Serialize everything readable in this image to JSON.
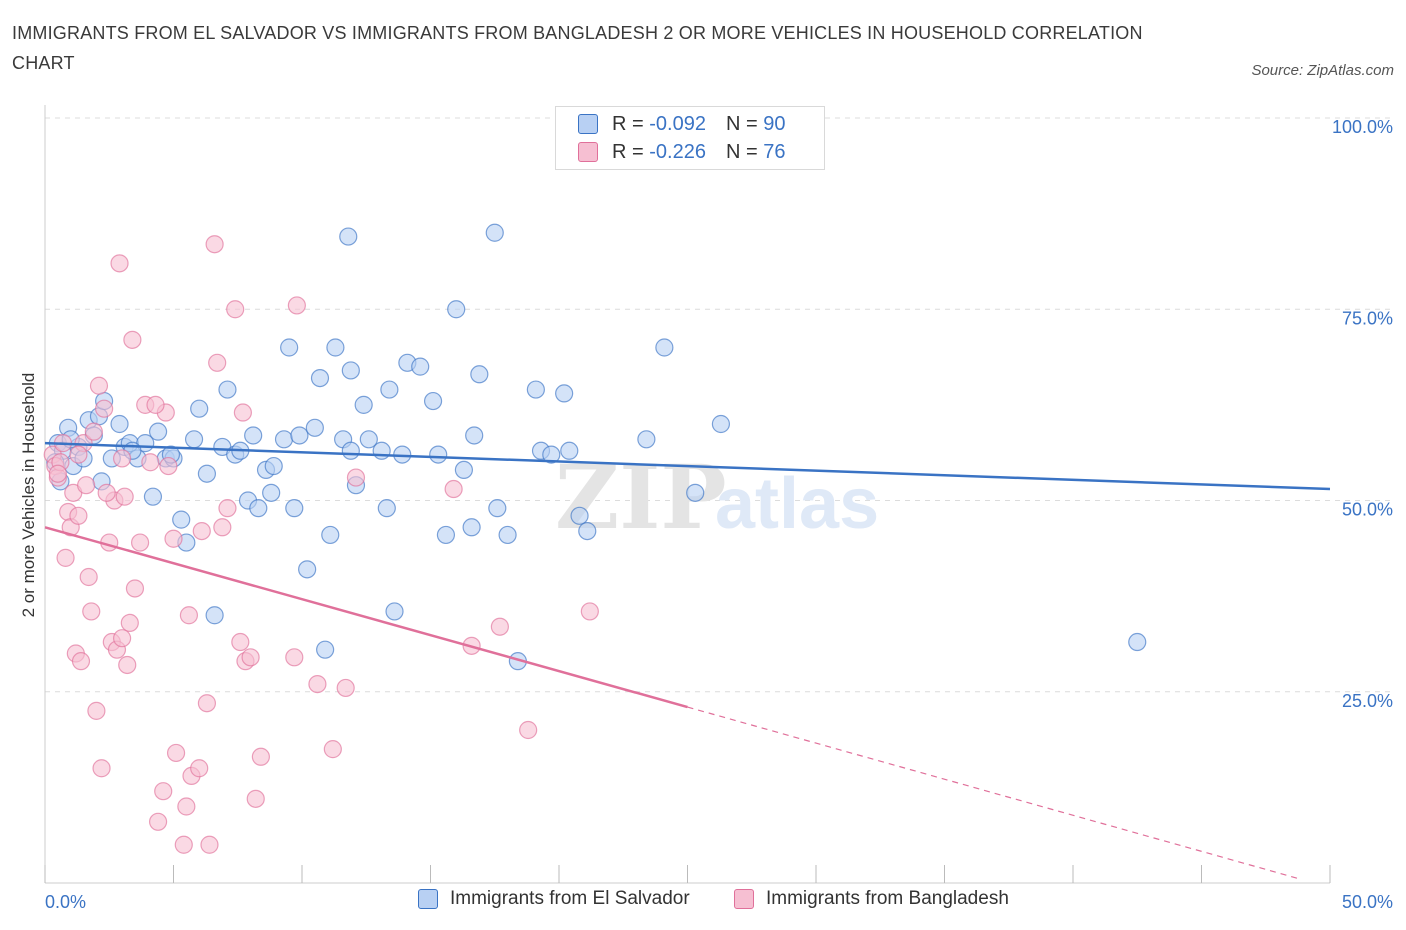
{
  "title": "IMMIGRANTS FROM EL SALVADOR VS IMMIGRANTS FROM BANGLADESH 2 OR MORE VEHICLES IN HOUSEHOLD CORRELATION CHART",
  "source": "Source: ZipAtlas.com",
  "watermark": {
    "zip": "ZIP",
    "atlas": "atlas"
  },
  "colors": {
    "blue": "#3a73c4",
    "blue_fill": "#b8d0f3",
    "pink": "#e0709a",
    "pink_fill": "#f6bfd2"
  },
  "legend": {
    "series1": {
      "r_label": "R =",
      "r_value": "-0.092",
      "n_label": "N =",
      "n_value": "90"
    },
    "series2": {
      "r_label": "R =",
      "r_value": "-0.226",
      "n_label": "N =",
      "n_value": "76"
    }
  },
  "bottom_legend": [
    "Immigrants from El Salvador",
    "Immigrants from Bangladesh"
  ],
  "chart_data": {
    "type": "scatter",
    "ylabel": "2 or more Vehicles in Household",
    "xlim": [
      0,
      50
    ],
    "ylim": [
      0,
      100
    ],
    "x_tick_labels": [
      "0.0%",
      "50.0%"
    ],
    "y_tick_labels": [
      "25.0%",
      "50.0%",
      "75.0%",
      "100.0%"
    ],
    "y_ticks": [
      25,
      50,
      75,
      100
    ],
    "grid": true,
    "series": [
      {
        "name": "Immigrants from El Salvador",
        "color": "#3a73c4",
        "trend": {
          "x": [
            0,
            50
          ],
          "y": [
            57.5,
            51.5
          ],
          "dashed_from": null
        },
        "points": [
          [
            0.5,
            57.5
          ],
          [
            0.7,
            56.5
          ],
          [
            0.9,
            59.5
          ],
          [
            1.1,
            54.5
          ],
          [
            1.3,
            57
          ],
          [
            1.5,
            55.5
          ],
          [
            1.7,
            60.5
          ],
          [
            1.9,
            58.5
          ],
          [
            2.1,
            61
          ],
          [
            2.3,
            63
          ],
          [
            2.6,
            55.5
          ],
          [
            2.9,
            60
          ],
          [
            3.1,
            57
          ],
          [
            3.3,
            57.5
          ],
          [
            3.6,
            55.5
          ],
          [
            3.9,
            57.5
          ],
          [
            4.2,
            50.5
          ],
          [
            4.4,
            59
          ],
          [
            4.7,
            55.5
          ],
          [
            5.0,
            55.5
          ],
          [
            5.3,
            47.5
          ],
          [
            5.5,
            44.5
          ],
          [
            5.8,
            58
          ],
          [
            6.0,
            62
          ],
          [
            6.3,
            53.5
          ],
          [
            6.6,
            35
          ],
          [
            6.9,
            57
          ],
          [
            7.1,
            64.5
          ],
          [
            7.4,
            56
          ],
          [
            7.6,
            56.5
          ],
          [
            7.9,
            50
          ],
          [
            8.1,
            58.5
          ],
          [
            8.3,
            49
          ],
          [
            8.6,
            54
          ],
          [
            8.8,
            51
          ],
          [
            8.9,
            54.5
          ],
          [
            9.3,
            58
          ],
          [
            9.5,
            70
          ],
          [
            9.7,
            49
          ],
          [
            9.9,
            58.5
          ],
          [
            10.2,
            41
          ],
          [
            10.5,
            59.5
          ],
          [
            10.7,
            66
          ],
          [
            10.9,
            30.5
          ],
          [
            11.1,
            45.5
          ],
          [
            11.3,
            70
          ],
          [
            11.6,
            58
          ],
          [
            11.9,
            56.5
          ],
          [
            11.9,
            67
          ],
          [
            12.1,
            52
          ],
          [
            12.4,
            62.5
          ],
          [
            12.6,
            58
          ],
          [
            13.1,
            56.5
          ],
          [
            13.3,
            49
          ],
          [
            13.4,
            64.5
          ],
          [
            13.6,
            35.5
          ],
          [
            13.9,
            56
          ],
          [
            14.1,
            68
          ],
          [
            14.6,
            67.5
          ],
          [
            15.1,
            63
          ],
          [
            15.3,
            56
          ],
          [
            15.6,
            45.5
          ],
          [
            16.0,
            75
          ],
          [
            16.3,
            54
          ],
          [
            16.6,
            46.5
          ],
          [
            16.7,
            58.5
          ],
          [
            16.9,
            66.5
          ],
          [
            17.6,
            49
          ],
          [
            18.0,
            45.5
          ],
          [
            18.4,
            29
          ],
          [
            19.1,
            64.5
          ],
          [
            19.3,
            56.5
          ],
          [
            19.7,
            56
          ],
          [
            20.2,
            64
          ],
          [
            20.4,
            56.5
          ],
          [
            20.8,
            48
          ],
          [
            21.1,
            46
          ],
          [
            23.4,
            58
          ],
          [
            24.1,
            70
          ],
          [
            25.3,
            51
          ],
          [
            26.3,
            60
          ],
          [
            42.5,
            31.5
          ],
          [
            0.4,
            55
          ],
          [
            0.6,
            52.5
          ],
          [
            1.0,
            58
          ],
          [
            2.2,
            52.5
          ],
          [
            4.9,
            56
          ],
          [
            11.8,
            84.5
          ],
          [
            17.5,
            85
          ],
          [
            3.4,
            56.5
          ]
        ]
      },
      {
        "name": "Immigrants from Bangladesh",
        "color": "#e0709a",
        "trend": {
          "x": [
            0,
            25,
            50
          ],
          "y": [
            46.5,
            23,
            0
          ],
          "dashed_from": 25
        },
        "points": [
          [
            0.3,
            56
          ],
          [
            0.4,
            54.5
          ],
          [
            0.5,
            53
          ],
          [
            0.6,
            55
          ],
          [
            0.7,
            57.5
          ],
          [
            0.8,
            42.5
          ],
          [
            0.9,
            48.5
          ],
          [
            1.0,
            46.5
          ],
          [
            1.1,
            51
          ],
          [
            1.2,
            30
          ],
          [
            1.3,
            48
          ],
          [
            1.4,
            29
          ],
          [
            1.5,
            57.5
          ],
          [
            1.6,
            52
          ],
          [
            1.7,
            40
          ],
          [
            1.8,
            35.5
          ],
          [
            1.9,
            59
          ],
          [
            2.0,
            22.5
          ],
          [
            2.1,
            65
          ],
          [
            2.2,
            15
          ],
          [
            2.3,
            62
          ],
          [
            2.5,
            44.5
          ],
          [
            2.6,
            31.5
          ],
          [
            2.7,
            50
          ],
          [
            2.8,
            30.5
          ],
          [
            2.9,
            81
          ],
          [
            3.0,
            55.5
          ],
          [
            3.1,
            50.5
          ],
          [
            3.2,
            28.5
          ],
          [
            3.3,
            34
          ],
          [
            3.4,
            71
          ],
          [
            3.5,
            38.5
          ],
          [
            3.7,
            44.5
          ],
          [
            3.9,
            62.5
          ],
          [
            4.1,
            55
          ],
          [
            4.4,
            8
          ],
          [
            4.6,
            12
          ],
          [
            4.7,
            61.5
          ],
          [
            4.8,
            54.5
          ],
          [
            5.0,
            45
          ],
          [
            5.1,
            17
          ],
          [
            5.4,
            5
          ],
          [
            5.5,
            10
          ],
          [
            5.7,
            14
          ],
          [
            6.0,
            15
          ],
          [
            6.1,
            46
          ],
          [
            6.3,
            23.5
          ],
          [
            6.4,
            5
          ],
          [
            6.6,
            83.5
          ],
          [
            6.7,
            68
          ],
          [
            7.1,
            49
          ],
          [
            7.4,
            75
          ],
          [
            7.6,
            31.5
          ],
          [
            7.7,
            61.5
          ],
          [
            7.8,
            29
          ],
          [
            8.0,
            29.5
          ],
          [
            8.2,
            11
          ],
          [
            8.4,
            16.5
          ],
          [
            9.7,
            29.5
          ],
          [
            9.8,
            75.5
          ],
          [
            11.2,
            17.5
          ],
          [
            11.7,
            25.5
          ],
          [
            12.1,
            53
          ],
          [
            15.9,
            51.5
          ],
          [
            16.6,
            31
          ],
          [
            17.7,
            33.5
          ],
          [
            18.8,
            20
          ],
          [
            21.2,
            35.5
          ],
          [
            0.5,
            53.5
          ],
          [
            1.3,
            56
          ],
          [
            2.4,
            51
          ],
          [
            3.0,
            32
          ],
          [
            4.3,
            62.5
          ],
          [
            5.6,
            35
          ],
          [
            6.9,
            46.5
          ],
          [
            10.6,
            26
          ]
        ]
      }
    ]
  }
}
